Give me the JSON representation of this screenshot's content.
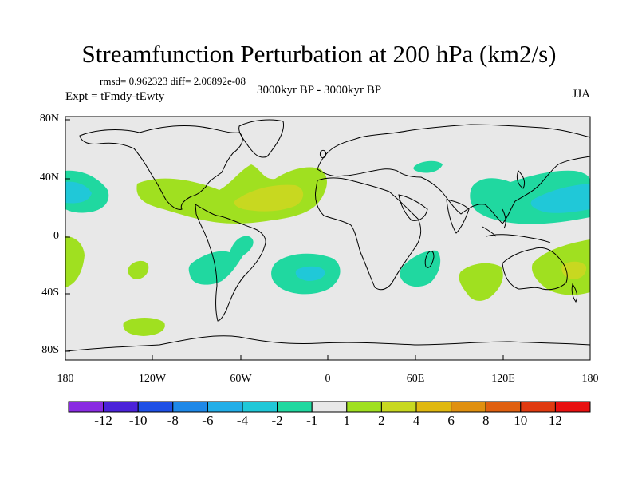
{
  "title": "Streamfunction Perturbation at 200 hPa (km2/s)",
  "stats": "rmsd= 0.962323  diff= 2.06892e-08",
  "experiment": "Expt = tFmdy-tEwty",
  "period": "3000kyr BP - 3000kyr BP",
  "season": "JJA",
  "axes": {
    "lat_ticks": [
      "80N",
      "40N",
      "0",
      "40S",
      "80S"
    ],
    "lon_ticks": [
      "180",
      "120W",
      "60W",
      "0",
      "60E",
      "120E",
      "180"
    ]
  },
  "colorbar": {
    "labels": [
      "-12",
      "-10",
      "-8",
      "-6",
      "-4",
      "-2",
      "-1",
      "1",
      "2",
      "4",
      "6",
      "8",
      "10",
      "12"
    ],
    "colors": [
      "#8a2be2",
      "#4b22d9",
      "#1e50e6",
      "#1e88e8",
      "#22aee8",
      "#20c8d8",
      "#20d8a0",
      "#e8e8e8",
      "#a0e020",
      "#c8d820",
      "#e0b810",
      "#e09010",
      "#e06010",
      "#e03a10",
      "#e81010"
    ]
  },
  "colors": {
    "ocean": "#e8e8e8",
    "pos1": "#a0e020",
    "pos2": "#c8d820",
    "neg1": "#20d8a0",
    "neg2": "#20c8d8"
  }
}
